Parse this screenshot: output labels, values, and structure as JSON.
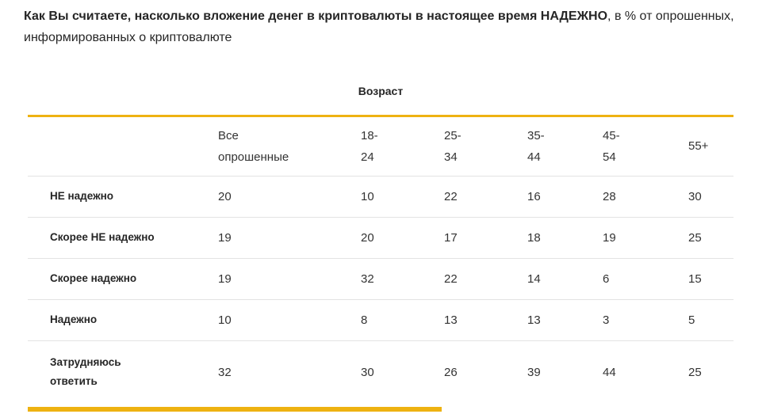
{
  "header": {
    "title_bold": "Как Вы считаете, насколько вложение денег в криптовалюты в настоящее время НАДЕЖНО",
    "title_rest": ", в % от опрошенных, информированных о криптовалюте"
  },
  "colors": {
    "accent": "#eeb211",
    "divider": "#e3e3e3",
    "text": "#333333"
  },
  "chart_data": {
    "type": "table",
    "title": "Как Вы считаете, насколько вложение денег в криптовалюты в настоящее время НАДЕЖНО, в % от опрошенных, информированных о криптовалюте",
    "column_group_label": "Возраст",
    "row_header": "",
    "columns": [
      "Все опрошенные",
      "18-24",
      "25-34",
      "35-44",
      "45-54",
      "55+"
    ],
    "rows": [
      {
        "label": "НЕ надежно",
        "values": [
          20,
          10,
          22,
          16,
          28,
          30
        ]
      },
      {
        "label": "Скорее НЕ надежно",
        "values": [
          19,
          20,
          17,
          18,
          19,
          25
        ]
      },
      {
        "label": "Скорее надежно",
        "values": [
          19,
          32,
          22,
          14,
          6,
          15
        ]
      },
      {
        "label": "Надежно",
        "values": [
          10,
          8,
          13,
          13,
          3,
          5
        ]
      },
      {
        "label": "Затрудняюсь ответить",
        "values": [
          32,
          30,
          26,
          39,
          44,
          25
        ]
      }
    ]
  }
}
